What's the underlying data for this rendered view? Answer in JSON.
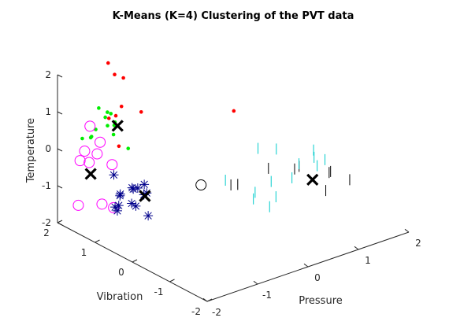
{
  "chart_data": {
    "type": "scatter",
    "title": "K-Means (K=4) Clustering of the PVT data",
    "xlabel": "Pressure",
    "ylabel": "Vibration",
    "zlabel": "Temperature",
    "xlim": [
      -2,
      2
    ],
    "ylim": [
      -2,
      2
    ],
    "zlim": [
      -2,
      2
    ],
    "xticks": [
      "-2",
      "-1",
      "0",
      "1",
      "2"
    ],
    "yticks": [
      "-2",
      "-1",
      "0",
      "1",
      "2"
    ],
    "zticks": [
      "-2",
      "-1",
      "0",
      "1",
      "2"
    ],
    "grid": false,
    "view": "3d",
    "series": [
      {
        "marker": "dot",
        "color": "#ff0000",
        "points": [
          [
            -1.04,
            1.94,
            1.9
          ],
          [
            -1.09,
            1.7,
            1.74
          ],
          [
            -1.02,
            1.56,
            1.69
          ],
          [
            -1.28,
            1.26,
            1.2
          ],
          [
            -1.06,
            1.03,
            1.07
          ],
          [
            -1.5,
            1.3,
            0.96
          ],
          [
            -1.4,
            1.25,
            1.01
          ],
          [
            -1.45,
            1.1,
            0.29
          ],
          [
            0.05,
            0.05,
            1.1
          ]
        ]
      },
      {
        "marker": "dot",
        "color": "#00ee00",
        "points": [
          [
            -1.58,
            1.14,
            1.21
          ],
          [
            -1.59,
            1.45,
            1.2
          ],
          [
            -1.53,
            1.3,
            1.14
          ],
          [
            -1.52,
            1.37,
            0.96
          ],
          [
            -1.44,
            1.22,
            0.87
          ],
          [
            -1.41,
            1.28,
            0.74
          ],
          [
            -1.49,
            1.35,
            0.73
          ],
          [
            -1.65,
            1.45,
            0.65
          ],
          [
            -1.77,
            1.4,
            0.54
          ],
          [
            -1.85,
            1.54,
            0.45
          ],
          [
            -1.72,
            1.49,
            0.44
          ],
          [
            -1.34,
            1.0,
            0.23
          ],
          [
            -1.52,
            1.15,
            0.61
          ]
        ]
      },
      {
        "marker": "circle",
        "color": "#ff00ff",
        "points": [
          [
            -1.4,
            1.94,
            0.36
          ],
          [
            -1.4,
            1.67,
            0.07
          ],
          [
            -1.54,
            1.56,
            -0.12
          ],
          [
            -1.67,
            1.72,
            -0.07
          ],
          [
            -1.79,
            1.68,
            -0.25
          ],
          [
            -1.64,
            1.64,
            -0.35
          ],
          [
            -1.37,
            1.39,
            -0.4
          ],
          [
            -1.66,
            0.96,
            -1.2
          ],
          [
            -1.86,
            1.0,
            -1.03
          ],
          [
            -1.75,
            1.78,
            -1.53
          ]
        ]
      },
      {
        "marker": "asterisk",
        "color": "#00008b",
        "points": [
          [
            -1.61,
            1.02,
            -0.37
          ],
          [
            -1.14,
            0.84,
            -0.75
          ],
          [
            -1.27,
            0.99,
            -0.86
          ],
          [
            -1.21,
            0.92,
            -0.86
          ],
          [
            -1.27,
            0.96,
            -0.88
          ],
          [
            -1.12,
            0.8,
            -0.97
          ],
          [
            -1.17,
            0.81,
            -1.0
          ],
          [
            -1.43,
            1.09,
            -1.01
          ],
          [
            -1.37,
            1.18,
            -1.13
          ],
          [
            -1.4,
            1.27,
            -1.47
          ],
          [
            -1.16,
            1.15,
            -1.42
          ],
          [
            -1.26,
            1.36,
            -1.54
          ],
          [
            -1.07,
            1.16,
            -1.54
          ],
          [
            -1.34,
            1.29,
            -1.61
          ],
          [
            -1.04,
            0.87,
            -1.66
          ]
        ]
      },
      {
        "marker": "circle",
        "color": "#000000",
        "points": [
          [
            -0.37,
            0.36,
            -0.87
          ]
        ]
      },
      {
        "marker": "vline",
        "color": "#000000",
        "points": [
          [
            0.15,
            0.08,
            -0.95
          ],
          [
            0.2,
            0.33,
            -1.12
          ],
          [
            0.7,
            0.0,
            -0.73
          ],
          [
            1.13,
            -0.24,
            -0.75
          ],
          [
            1.1,
            -0.16,
            -0.85
          ],
          [
            1.45,
            -0.65,
            -0.82
          ],
          [
            1.51,
            -0.53,
            -0.94
          ],
          [
            1.77,
            -0.73,
            -1.15
          ],
          [
            1.54,
            -0.4,
            -1.51
          ]
        ]
      },
      {
        "marker": "vline",
        "color": "#00cccc",
        "points": [
          [
            0.76,
            0.36,
            -0.41
          ],
          [
            0.99,
            0.18,
            -0.44
          ],
          [
            1.38,
            -0.29,
            -0.4
          ],
          [
            1.33,
            -0.37,
            -0.53
          ],
          [
            1.45,
            -0.5,
            -0.58
          ],
          [
            1.31,
            -0.48,
            -0.69
          ],
          [
            1.12,
            -0.25,
            -0.67
          ],
          [
            1.07,
            -0.13,
            -1.09
          ],
          [
            0.88,
            0.17,
            -1.26
          ],
          [
            0.41,
            0.76,
            -1.32
          ],
          [
            0.71,
            0.37,
            -1.58
          ],
          [
            0.96,
            0.15,
            -1.7
          ],
          [
            0.96,
            0.32,
            -2.06
          ],
          [
            0.75,
            0.47,
            -1.83
          ]
        ]
      }
    ],
    "centroids": [
      {
        "marker": "x",
        "color": "#000000",
        "point": [
          -1.38,
          1.23,
          0.74
        ]
      },
      {
        "marker": "x",
        "color": "#000000",
        "point": [
          -1.72,
          1.49,
          -0.54
        ]
      },
      {
        "marker": "x",
        "color": "#000000",
        "point": [
          -1.12,
          0.85,
          -1.08
        ]
      },
      {
        "marker": "x",
        "color": "#000000",
        "point": [
          1.24,
          -0.45,
          -1.05
        ]
      }
    ]
  }
}
